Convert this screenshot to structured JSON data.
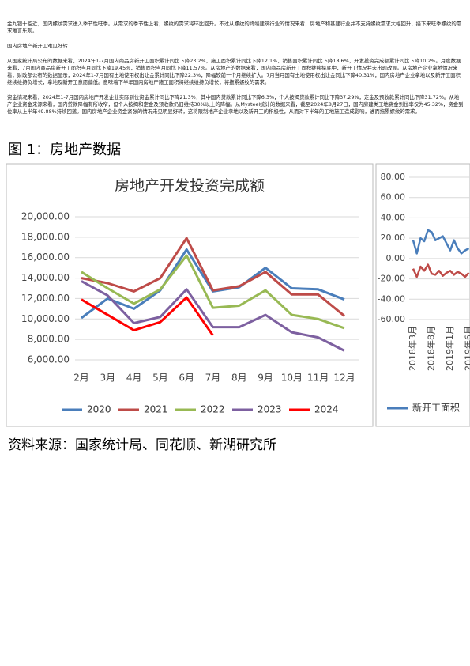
{
  "paragraphs": [
    "金九银十临近，国内螺纹需求进入季节性旺季。从需求的季节性上看，螺纹的需求将环比回升。不过从螺纹的终端建筑行业的情况来看，房地产和基建行业并不支持螺纹需求大幅回升，接下来旺季螺纹的需求难言乐观。",
    "国内房地产新开工难见好转",
    "从国家统计局公布的数据来看，2024年1-7月国内商品房新开工面积累计同比下降23.2%，施工面积累计同比下降12.1%，销售面积累计同比下降18.6%，开发投资完成额累计同比下降10.2%。月度数据来看，7月国内商品房新开工面积当月同比下降19.45%，销售面积当月同比下降11.57%。从房地产的数据来看，国内商品房新开工面积继续探底中，新开工情况并未出现改观。从房地产企业拿地情况来看，财政部公布的数据显示，2024年1-7月国有土地使用权出让金累计同比下降22.3%，降幅较前一个月继续扩大。7月当月国有土地使用权出让金同比下降40.31%，国内房地产企业拿地以及新开工面积继续维持负增长，拿地及新开工意愿偏低。意味着下半年国内房地产施工面积将继续维持负增长，将拖累螺纹的需求。",
    "资金情况来看，2024年1-7月国内房地产开发企业实际到位资金累计同比下降21.3%，其中国内贷款累计同比下降6.3%，个人按揭贷款累计同比下降37.29%，定金及预收款累计同比下降31.72%。从地产企业资金来源来看，国内贷款降幅有所收窄，但个人按揭和定金及预收款仍旧维持30%以上的降幅。从Mysteel统计的数据来看，截至2024年8月27日，国内房建类工地资金到位率仅为45.32%，资金到位率从上半年49.88%持续回落。国内房地产企业资金紧张的情况未见明显好转，这将限制地产企业拿地以及新开工的积极性，从而对下半年的工地施工造成影响，进而拖累螺纹的需求。"
  ],
  "figure_title": "图 1：房地产数据",
  "source": "资料来源：国家统计局、同花顺、新湖研究所",
  "chart_data": [
    {
      "type": "line",
      "title": "房地产开发投资完成额",
      "categories": [
        "2月",
        "3月",
        "4月",
        "5月",
        "6月",
        "7月",
        "8月",
        "9月",
        "10月",
        "11月",
        "12月"
      ],
      "series": [
        {
          "name": "2020",
          "color": "#4a7ebb",
          "values": [
            10100,
            12000,
            11000,
            12800,
            16800,
            12700,
            13100,
            15000,
            13000,
            12900,
            11900
          ]
        },
        {
          "name": "2021",
          "color": "#be4b48",
          "values": [
            14000,
            13500,
            12700,
            14000,
            17900,
            12800,
            13200,
            14600,
            12400,
            12400,
            10300
          ]
        },
        {
          "name": "2022",
          "color": "#98b954",
          "values": [
            14600,
            13000,
            11500,
            12900,
            16200,
            11100,
            11300,
            12800,
            10400,
            10000,
            9100
          ]
        },
        {
          "name": "2023",
          "color": "#7d60a0",
          "values": [
            13700,
            12300,
            9600,
            10200,
            12900,
            9200,
            9200,
            10400,
            8700,
            8200,
            6900
          ]
        },
        {
          "name": "2024",
          "color": "#ff0000",
          "values": [
            11900,
            10400,
            8900,
            9700,
            12100,
            8400,
            null,
            null,
            null,
            null,
            null
          ]
        }
      ],
      "ylim": [
        6000,
        20000
      ],
      "yticks": [
        {
          "value": 6000,
          "label": "6,000.00"
        },
        {
          "value": 8000,
          "label": "8,000.00"
        },
        {
          "value": 10000,
          "label": "10,000.00"
        },
        {
          "value": 12000,
          "label": "12,000.00"
        },
        {
          "value": 14000,
          "label": "14,000.00"
        },
        {
          "value": 16000,
          "label": "16,000.00"
        },
        {
          "value": 18000,
          "label": "18,000.00"
        },
        {
          "value": 20000,
          "label": "20,000.00"
        }
      ],
      "grid": true
    },
    {
      "type": "line",
      "categories": [
        "2018年3月",
        null,
        null,
        null,
        null,
        "2018年8月",
        null,
        null,
        null,
        null,
        "2019年1月",
        null,
        null,
        null,
        null,
        "2019年6月"
      ],
      "series": [
        {
          "name": "新开工面积",
          "color": "#4a7ebb",
          "values": [
            18,
            5,
            20,
            17,
            28,
            26,
            18,
            20,
            22,
            15,
            8,
            18,
            10,
            5,
            8,
            10
          ]
        },
        {
          "color": "#be4b48",
          "values": [
            -10,
            -18,
            -8,
            -12,
            -6,
            -15,
            -16,
            -12,
            -17,
            -14,
            -12,
            -16,
            -13,
            -15,
            -18,
            -14
          ]
        }
      ],
      "ylim": [
        -60,
        80
      ],
      "yticks": [
        {
          "value": -60,
          "label": "-60.00"
        },
        {
          "value": -40,
          "label": "-40.00"
        },
        {
          "value": -20,
          "label": "-20.00"
        },
        {
          "value": 0,
          "label": "0.00"
        },
        {
          "value": 20,
          "label": "20.00"
        },
        {
          "value": 40,
          "label": "40.00"
        },
        {
          "value": 60,
          "label": "60.00"
        },
        {
          "value": 80,
          "label": "80.00"
        }
      ],
      "grid": true
    }
  ]
}
